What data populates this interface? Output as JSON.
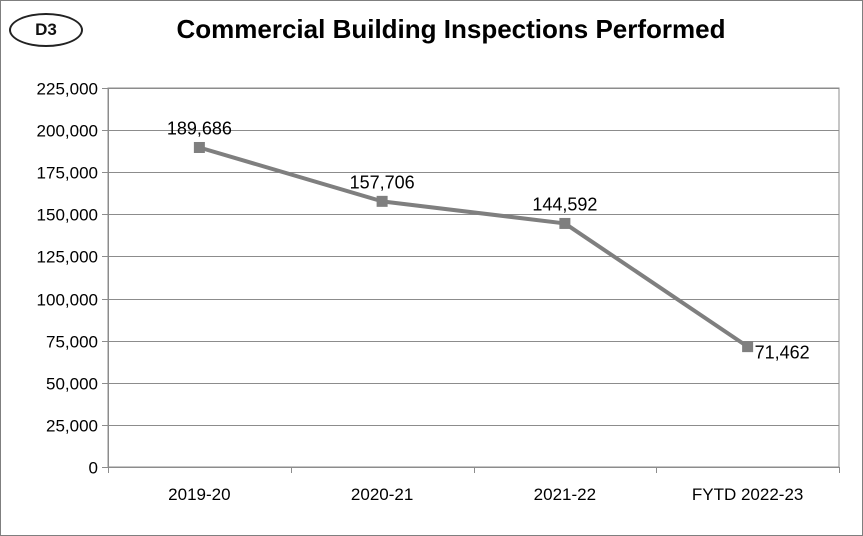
{
  "badge": "D3",
  "chart_data": {
    "type": "line",
    "title": "Commercial Building Inspections Performed",
    "categories": [
      "2019-20",
      "2020-21",
      "2021-22",
      "FYTD 2022-23"
    ],
    "series": [
      {
        "values": [
          189686,
          157706,
          144592,
          71462
        ]
      }
    ],
    "data_labels": [
      "189,686",
      "157,706",
      "144,592",
      "71,462"
    ],
    "ylim": [
      0,
      225000
    ],
    "yticks": [
      0,
      25000,
      50000,
      75000,
      100000,
      125000,
      150000,
      175000,
      200000,
      225000
    ],
    "ytick_labels": [
      "0",
      "25,000",
      "50,000",
      "75,000",
      "100,000",
      "125,000",
      "150,000",
      "175,000",
      "200,000",
      "225,000"
    ],
    "grid": true,
    "legend": "none",
    "line_color": "#7f7f7f",
    "marker": "square"
  }
}
